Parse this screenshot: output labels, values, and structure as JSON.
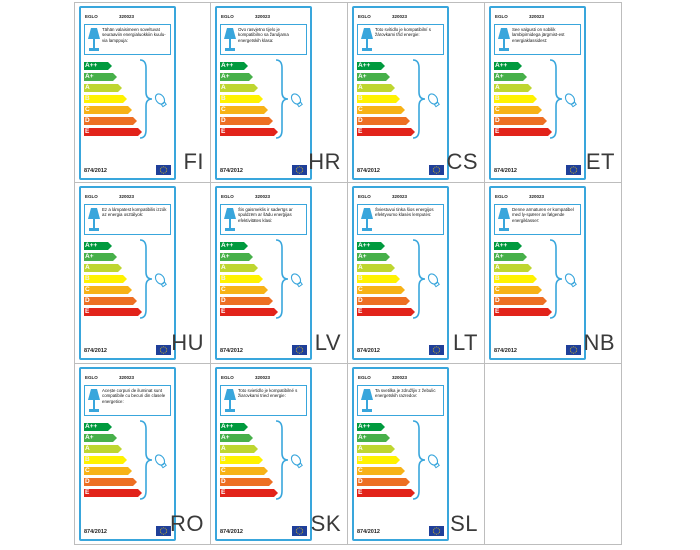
{
  "brand": "EGLO",
  "model": "320023",
  "regulation": "874/2012",
  "energy_classes": [
    {
      "label": "A++",
      "color": "#009a3e"
    },
    {
      "label": "A+",
      "color": "#47b04a"
    },
    {
      "label": "A",
      "color": "#bed630"
    },
    {
      "label": "B",
      "color": "#fff200"
    },
    {
      "label": "C",
      "color": "#f7b217"
    },
    {
      "label": "D",
      "color": "#ed6f23"
    },
    {
      "label": "E",
      "color": "#e2231a"
    }
  ],
  "accent_color": "#39a6dc",
  "labels": [
    {
      "lang": "FI",
      "text": "Tähän valaisimeen soveltuvat seuraaviin energialuokkiin kuulu-via lamppuja:"
    },
    {
      "lang": "HR",
      "text": "Ovo rasvjetno tijelo je kompatibilno sa žaruljama energetskih klasa:"
    },
    {
      "lang": "CS",
      "text": "Toto svítidlo je kompatibilní s žárovkami tříd energie:"
    },
    {
      "lang": "ET",
      "text": "See valgusti on sobilik lambipirnidega järgmist-est energiaklassidest:"
    },
    {
      "lang": "HU",
      "text": "Ez a lámpatest kompatibilis izzók az energia osztályok:"
    },
    {
      "lang": "LV",
      "text": "Šis gaismeklis ir saderīgs ar spuldzēm ar šādu enerģijas efektivitātes klasi:"
    },
    {
      "lang": "LT",
      "text": "Šviestuvui tinka šios energijos efektyvumo klasės lemputės:"
    },
    {
      "lang": "NB",
      "text": "Denne armaturen er kompatibel med ly-spærer av følgende energiklasser:"
    },
    {
      "lang": "RO",
      "text": "Acește corpuri de iluminat sunt compatibile cu becuri din clasele energetice:"
    },
    {
      "lang": "SK",
      "text": "Toto svietidlo je kompatibilné s žiarovkami tried energie:"
    },
    {
      "lang": "SL",
      "text": "Ta svetilka je združljiv z žebulic energetskih razredov:"
    }
  ]
}
